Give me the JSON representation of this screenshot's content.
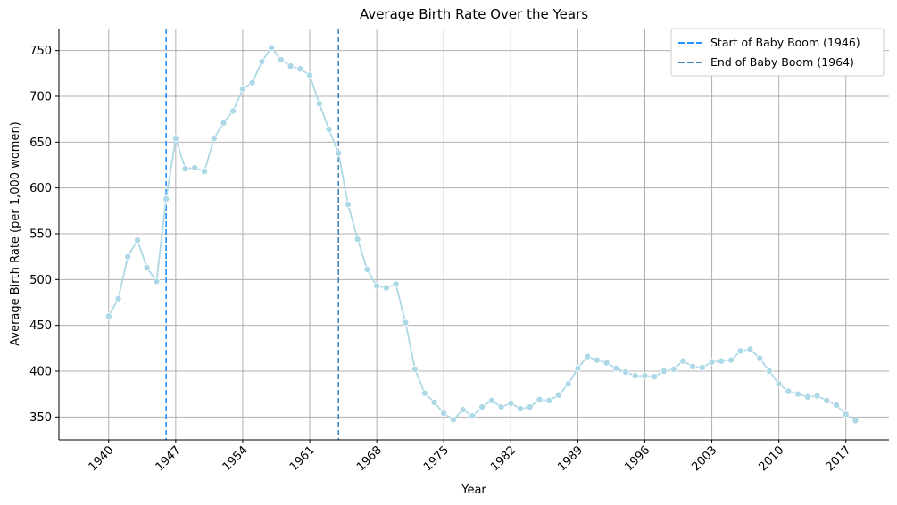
{
  "chart_data": {
    "type": "line",
    "title": "Average Birth Rate Over the Years",
    "xlabel": "Year",
    "ylabel": "Average Birth Rate (per 1,000 women)",
    "xlim": [
      1934.8,
      2021.5
    ],
    "ylim": [
      325,
      774
    ],
    "xticks": [
      1940,
      1947,
      1954,
      1961,
      1968,
      1975,
      1982,
      1989,
      1996,
      2003,
      2010,
      2017
    ],
    "yticks": [
      350,
      400,
      450,
      500,
      550,
      600,
      650,
      700,
      750
    ],
    "grid": true,
    "legend_position": "top-right",
    "series": [
      {
        "color": "#add8e6",
        "x": [
          1940,
          1941,
          1942,
          1943,
          1944,
          1945,
          1946,
          1947,
          1948,
          1949,
          1950,
          1951,
          1952,
          1953,
          1954,
          1955,
          1956,
          1957,
          1958,
          1959,
          1960,
          1961,
          1962,
          1963,
          1964,
          1965,
          1966,
          1967,
          1968,
          1969,
          1970,
          1971,
          1972,
          1973,
          1974,
          1975,
          1976,
          1977,
          1978,
          1979,
          1980,
          1981,
          1982,
          1983,
          1984,
          1985,
          1986,
          1987,
          1988,
          1989,
          1990,
          1991,
          1992,
          1993,
          1994,
          1995,
          1996,
          1997,
          1998,
          1999,
          2000,
          2001,
          2002,
          2003,
          2004,
          2005,
          2006,
          2007,
          2008,
          2009,
          2010,
          2011,
          2012,
          2013,
          2014,
          2015,
          2016,
          2017,
          2018
        ],
        "y": [
          460,
          479,
          525,
          543,
          513,
          498,
          588,
          654,
          621,
          622,
          618,
          654,
          671,
          684,
          708,
          715,
          738,
          753,
          740,
          733,
          730,
          723,
          692,
          664,
          638,
          582,
          544,
          511,
          493,
          491,
          495,
          453,
          402,
          376,
          366,
          354,
          347,
          358,
          351,
          361,
          368,
          361,
          365,
          359,
          361,
          369,
          368,
          374,
          386,
          403,
          416,
          412,
          409,
          403,
          399,
          395,
          395,
          394,
          400,
          402,
          411,
          405,
          404,
          410,
          411,
          412,
          422,
          424,
          414,
          400,
          386,
          378,
          375,
          372,
          373,
          368,
          363,
          353,
          346
        ]
      }
    ],
    "vlines": [
      {
        "x": 1946,
        "label": "Start of Baby Boom (1946)",
        "color": "#1e90ff",
        "style": "dashed"
      },
      {
        "x": 1964,
        "label": "End of Baby Boom (1964)",
        "color": "#4682b4",
        "style": "dashed"
      }
    ]
  }
}
